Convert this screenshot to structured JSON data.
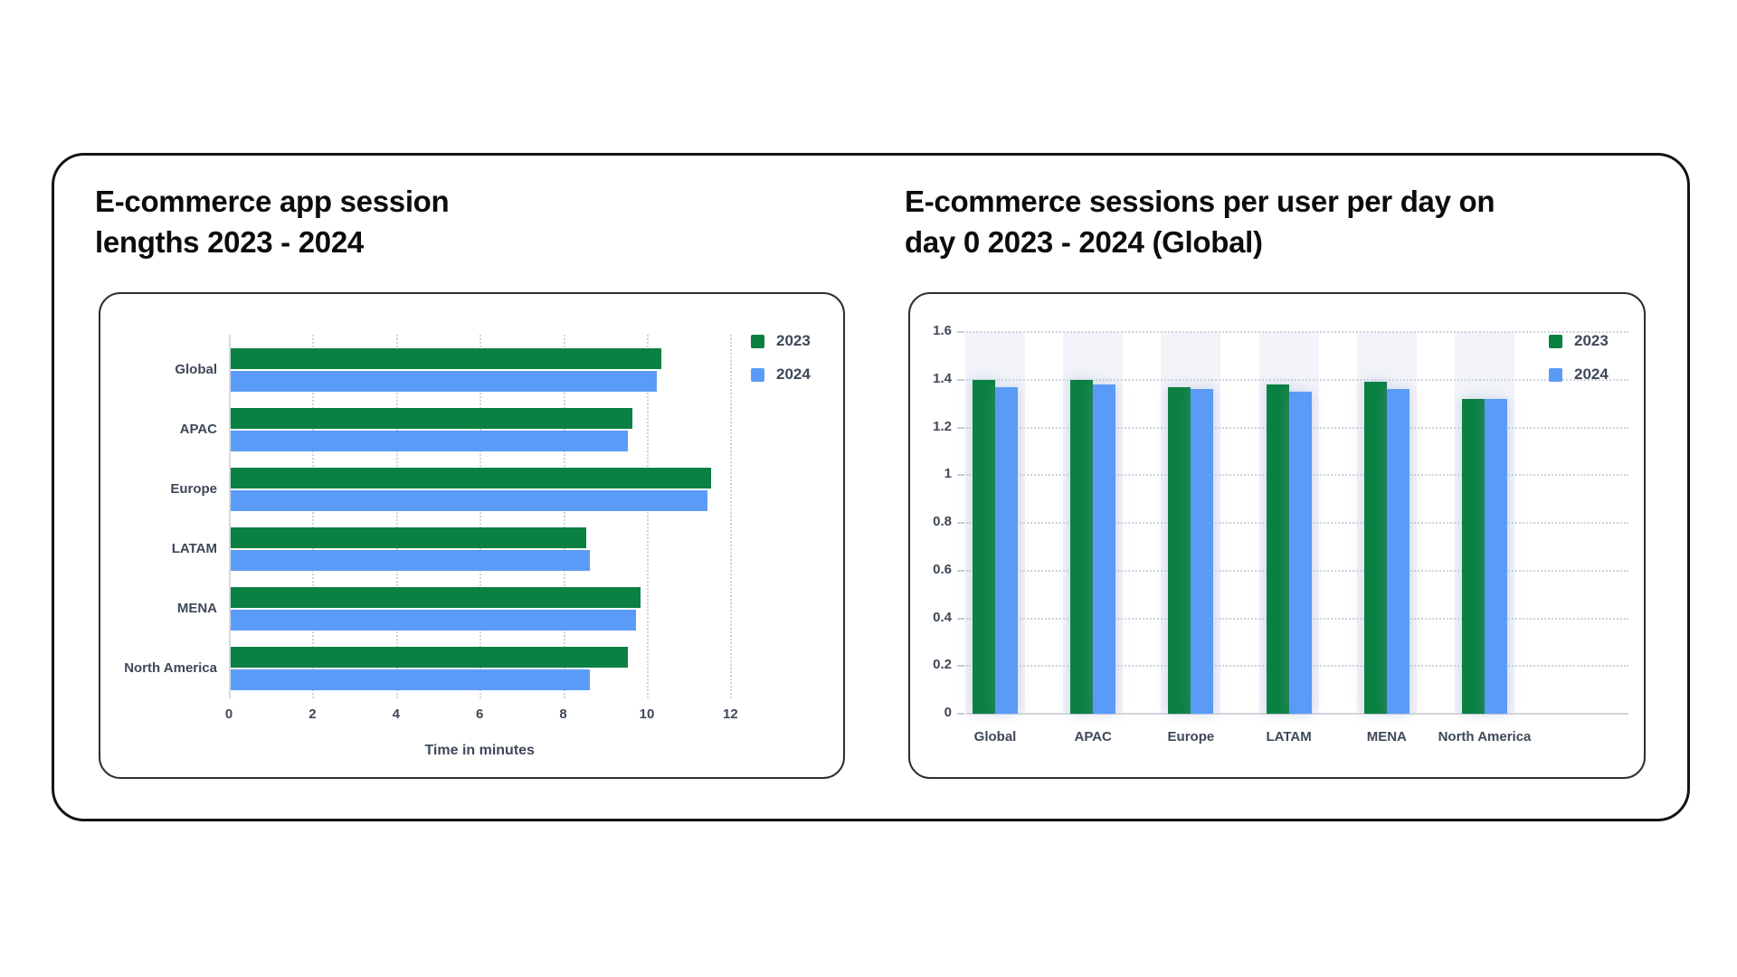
{
  "chart_data": [
    {
      "type": "bar",
      "orientation": "horizontal",
      "title": "E-commerce app session lengths 2023 - 2024",
      "title_lines": [
        "E-commerce app session",
        "lengths 2023 - 2024"
      ],
      "categories": [
        "Global",
        "APAC",
        "Europe",
        "LATAM",
        "MENA",
        "North America"
      ],
      "series": [
        {
          "name": "2023",
          "color": "#0b8043",
          "values": [
            10.3,
            9.6,
            11.5,
            8.5,
            9.8,
            9.5
          ]
        },
        {
          "name": "2024",
          "color": "#5b9bf8",
          "values": [
            10.2,
            9.5,
            11.4,
            8.6,
            9.7,
            8.6
          ]
        }
      ],
      "xlabel": "Time in minutes",
      "xlim": [
        0,
        12
      ],
      "xticks": [
        "0",
        "2",
        "4",
        "6",
        "8",
        "10",
        "12"
      ],
      "grid": "vertical-dotted",
      "legend_position": "top-right"
    },
    {
      "type": "bar",
      "orientation": "vertical",
      "title": "E-commerce sessions per user per day on day 0 2023 - 2024 (Global)",
      "title_lines": [
        "E-commerce sessions per user per day on",
        "day 0 2023 - 2024 (Global)"
      ],
      "categories": [
        "Global",
        "APAC",
        "Europe",
        "LATAM",
        "MENA",
        "North America"
      ],
      "series": [
        {
          "name": "2023",
          "color": "#0b8043",
          "values": [
            1.4,
            1.4,
            1.37,
            1.38,
            1.39,
            1.32
          ]
        },
        {
          "name": "2024",
          "color": "#5b9bf8",
          "values": [
            1.37,
            1.38,
            1.36,
            1.35,
            1.36,
            1.32
          ]
        }
      ],
      "ylim": [
        0,
        1.6
      ],
      "yticks": [
        "0",
        "0.2",
        "0.4",
        "0.6",
        "0.8",
        "1",
        "1.2",
        "1.4",
        "1.6"
      ],
      "grid": "horizontal-dotted",
      "legend_position": "top-right"
    }
  ],
  "colors": {
    "series_2023": "#0b8043",
    "series_2024": "#5b9bf8",
    "label_text": "#3e4858",
    "title_text": "#0c0c0d",
    "gridline": "#ced3dc"
  }
}
